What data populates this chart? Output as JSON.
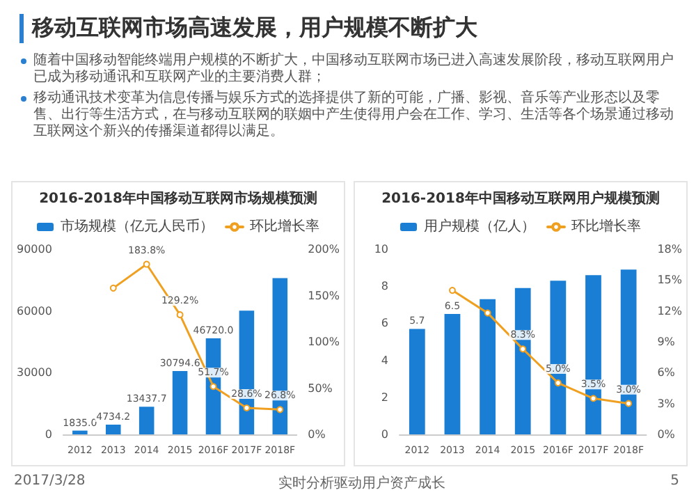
{
  "chart_data": [
    {
      "type": "other",
      "title": "移动互联网市场高速发展，用户规模不断扩大",
      "annotations": [
        "随着中国移动智能终端用户规模的不断扩大，中国移动互联网市场已进入高速发展阶段，移动互联网用户已成为移动通讯和互联网产业的主要消费人群；",
        "移动通讯技术变革为信息传播与娱乐方式的选择提供了新的可能，广播、影视、音乐等产业形态以及零售、出行等生活方式，在与移动互联网的联姻中产生使得用户会在工作、学习、生活等各个场景通过移动互联网这个新兴的传播渠道都得以满足。",
        "2017/3/28",
        "实时分析驱动用户资产成长",
        "5"
      ]
    },
    {
      "type": "bar",
      "title": "2016-2018年中国移动互联网市场规模预测",
      "categories": [
        "2012",
        "2013",
        "2014",
        "2015",
        "2016F",
        "2017F",
        "2018F"
      ],
      "legend": "top",
      "marker": "circle",
      "ylim": [
        0,
        90000
      ],
      "yticks": [
        0,
        30000,
        60000,
        90000
      ],
      "y2lim": [
        0,
        200
      ],
      "y2ticks": [
        {
          "value": 0,
          "label": "0%"
        },
        {
          "value": 50,
          "label": "50%"
        },
        {
          "value": 100,
          "label": "100%"
        },
        {
          "value": 150,
          "label": "150%"
        },
        {
          "value": 200,
          "label": "200%"
        }
      ],
      "series": [
        {
          "name": "市场规模（亿元人民币）",
          "type": "bar",
          "color": "#1a7fd4",
          "values": [
            1835.0,
            4734.2,
            13437.7,
            30794.6,
            46720.0,
            60100,
            76000
          ],
          "value_labels": [
            "1835.0",
            "4734.2",
            "13437.7",
            "30794.6",
            "46720.0",
            null,
            null
          ]
        },
        {
          "name": "环比增长率",
          "type": "line",
          "axis": "y2",
          "color": "#f0a020",
          "values": [
            null,
            158.0,
            183.8,
            129.2,
            51.7,
            28.6,
            26.8
          ],
          "value_labels": [
            null,
            null,
            "183.8%",
            "129.2%",
            "51.7%",
            "28.6%",
            "26.8%"
          ]
        }
      ]
    },
    {
      "type": "bar",
      "title": "2016-2018年中国移动互联网用户规模预测",
      "categories": [
        "2012",
        "2013",
        "2014",
        "2015",
        "2016F",
        "2017F",
        "2018F"
      ],
      "legend": "top",
      "marker": "circle",
      "ylim": [
        0,
        10
      ],
      "yticks": [
        0,
        2,
        4,
        6,
        8,
        10
      ],
      "y2lim": [
        0,
        18
      ],
      "y2ticks": [
        {
          "value": 0,
          "label": "0%"
        },
        {
          "value": 3,
          "label": "3%"
        },
        {
          "value": 6,
          "label": "6%"
        },
        {
          "value": 9,
          "label": "9%"
        },
        {
          "value": 12,
          "label": "12%"
        },
        {
          "value": 15,
          "label": "15%"
        },
        {
          "value": 18,
          "label": "18%"
        }
      ],
      "series": [
        {
          "name": "用户规模（亿人）",
          "type": "bar",
          "color": "#1a7fd4",
          "values": [
            5.7,
            6.5,
            7.3,
            7.9,
            8.3,
            8.6,
            8.9
          ],
          "value_labels": [
            "5.7",
            "6.5",
            null,
            null,
            null,
            null,
            null
          ]
        },
        {
          "name": "环比增长率",
          "type": "line",
          "axis": "y2",
          "color": "#f0a020",
          "values": [
            null,
            14.0,
            11.8,
            8.3,
            5.0,
            3.5,
            3.0
          ],
          "value_labels": [
            null,
            null,
            null,
            "8.3%",
            "5.0%",
            "3.5%",
            "3.0%"
          ]
        }
      ]
    }
  ]
}
